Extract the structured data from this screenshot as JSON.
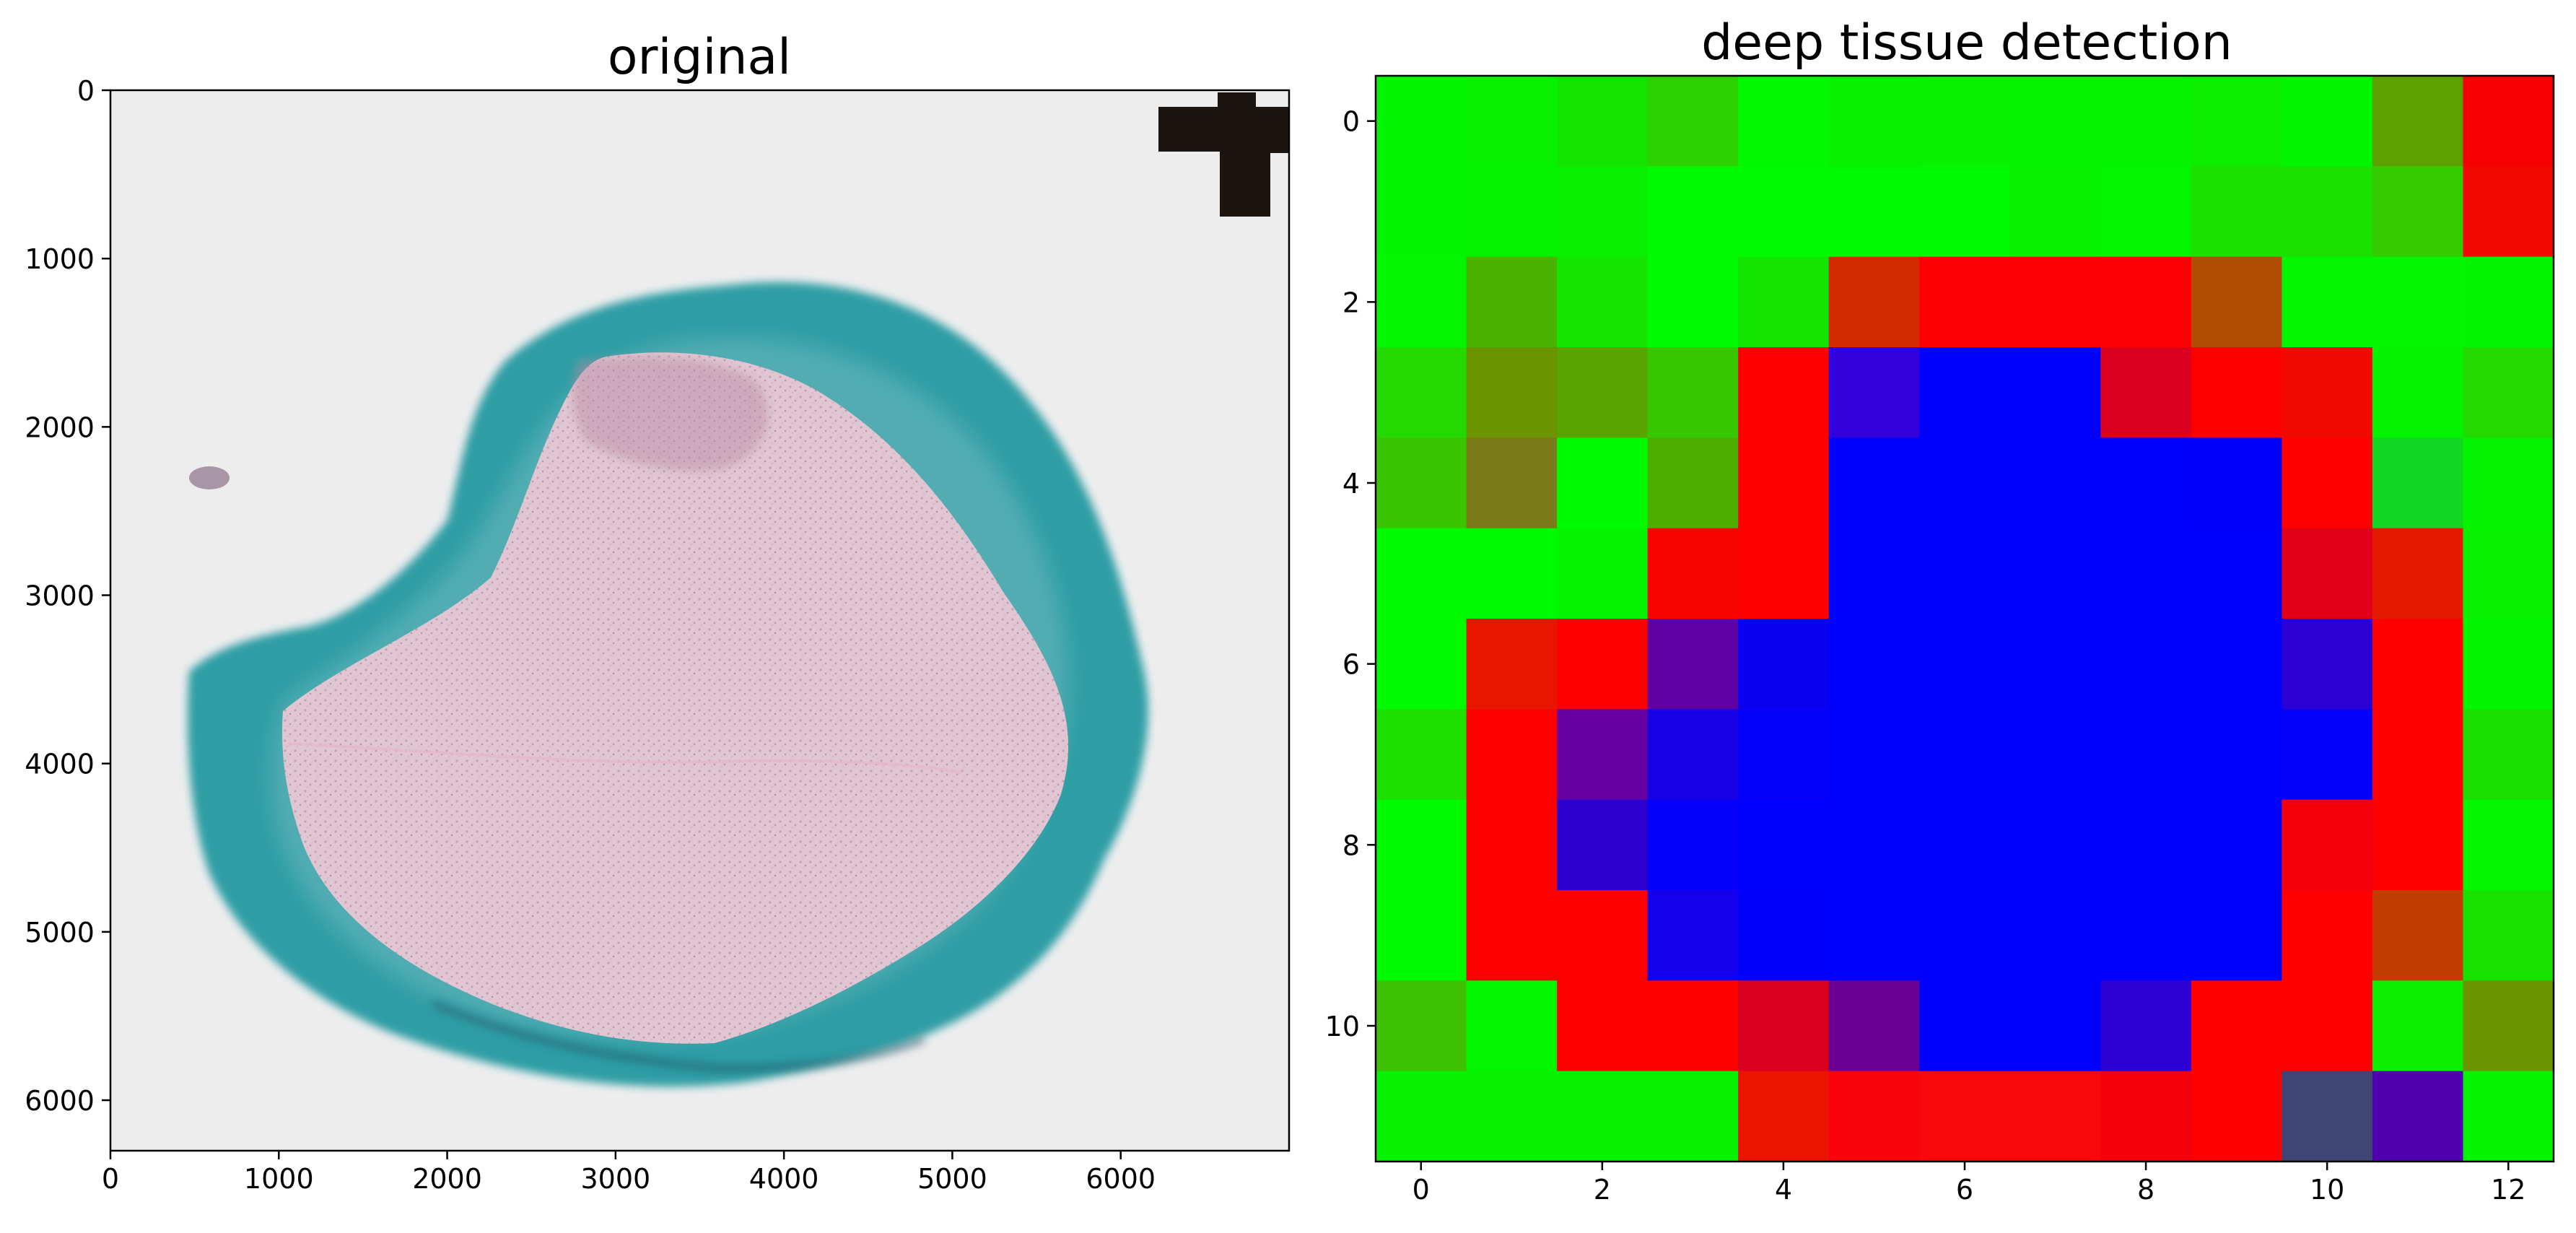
{
  "chart_data": [
    {
      "type": "image",
      "title": "original",
      "xlabel": "",
      "ylabel": "",
      "xlim": [
        0,
        7000
      ],
      "ylim": [
        6300,
        0
      ],
      "xticks": [
        0,
        1000,
        2000,
        3000,
        4000,
        5000,
        6000
      ],
      "yticks": [
        0,
        1000,
        2000,
        3000,
        4000,
        5000,
        6000
      ],
      "xtick_labels": [
        "0",
        "1000",
        "2000",
        "3000",
        "4000",
        "5000",
        "6000"
      ],
      "ytick_labels": [
        "0",
        "1000",
        "2000",
        "3000",
        "4000",
        "5000",
        "6000"
      ],
      "background_color": "#eceded",
      "tissue_ring_color": "#2a9aa0",
      "tissue_core_color": "#dcc2cf",
      "marker_color": "#1a1410"
    },
    {
      "type": "heatmap",
      "title": "deep tissue detection",
      "xlabel": "",
      "ylabel": "",
      "xlim": [
        -0.5,
        12.5
      ],
      "ylim": [
        11.5,
        -0.5
      ],
      "xticks": [
        0,
        2,
        4,
        6,
        8,
        10,
        12
      ],
      "yticks": [
        0,
        2,
        4,
        6,
        8,
        10
      ],
      "xtick_labels": [
        "0",
        "2",
        "4",
        "6",
        "8",
        "10",
        "12"
      ],
      "ytick_labels": [
        "0",
        "2",
        "4",
        "6",
        "8",
        "10"
      ],
      "ncols": 13,
      "nrows": 12,
      "cells": [
        [
          "#02f500",
          "#06f200",
          "#14e500",
          "#2ed100",
          "#00f900",
          "#08f100",
          "#06f200",
          "#04f400",
          "#04f400",
          "#0ced00",
          "#02f500",
          "#5ca100",
          "#f80000"
        ],
        [
          "#02f500",
          "#04f400",
          "#08f000",
          "#00fa00",
          "#00fa00",
          "#00fa00",
          "#00fa00",
          "#06f200",
          "#02f600",
          "#1ce000",
          "#1ce000",
          "#34cc00",
          "#f20800"
        ],
        [
          "#02f600",
          "#4ab200",
          "#14e600",
          "#00fa00",
          "#12e600",
          "#d42a00",
          "#fb0000",
          "#fb0000",
          "#fb0000",
          "#b24c00",
          "#02f600",
          "#02f600",
          "#02f500"
        ],
        [
          "#24d900",
          "#6a9400",
          "#58a400",
          "#36c800",
          "#fe0000",
          "#3200da",
          "#0000fe",
          "#0000fe",
          "#dc0020",
          "#fe0000",
          "#f10a00",
          "#04f400",
          "#24d900"
        ],
        [
          "#38c500",
          "#7a7a18",
          "#00fa00",
          "#4eae00",
          "#fe0000",
          "#0000fe",
          "#0000fe",
          "#0000fe",
          "#0000fe",
          "#0000fa",
          "#fe0000",
          "#12d624",
          "#04f300"
        ],
        [
          "#00fa00",
          "#00fa00",
          "#04f400",
          "#f80400",
          "#fe0000",
          "#0000fe",
          "#0000fe",
          "#0000fe",
          "#0000fe",
          "#0000fe",
          "#e00018",
          "#e41a00",
          "#06f200"
        ],
        [
          "#00fa00",
          "#e81600",
          "#fe0000",
          "#5e00a2",
          "#0a00f2",
          "#0000fe",
          "#0000fe",
          "#0000fe",
          "#0000fe",
          "#0000fe",
          "#2c00d4",
          "#fe0000",
          "#02f500"
        ],
        [
          "#1ee000",
          "#fe0000",
          "#6600a0",
          "#1800e6",
          "#0400fa",
          "#0000fe",
          "#0000fe",
          "#0000fe",
          "#0000fe",
          "#0000fe",
          "#0400fa",
          "#fe0000",
          "#1adf00"
        ],
        [
          "#00fa00",
          "#fe0000",
          "#2e00d0",
          "#0400fa",
          "#0000fe",
          "#0000fe",
          "#0000fe",
          "#0000fe",
          "#0000fe",
          "#0000fe",
          "#f4000c",
          "#fe0000",
          "#02f600"
        ],
        [
          "#00fa00",
          "#fe0000",
          "#fe0000",
          "#1300ec",
          "#0200fc",
          "#0000fe",
          "#0000fe",
          "#0000fe",
          "#0000fe",
          "#0000fe",
          "#fe0000",
          "#c23c00",
          "#18e300"
        ],
        [
          "#3cc000",
          "#02f600",
          "#fe0000",
          "#fe0000",
          "#dc0020",
          "#6a0094",
          "#0000fe",
          "#0000fe",
          "#2c00d2",
          "#fe0000",
          "#fe0000",
          "#0ced00",
          "#6a9400"
        ],
        [
          "#06f200",
          "#06f200",
          "#06f200",
          "#06f200",
          "#ea1400",
          "#f8040a",
          "#f80808",
          "#f80808",
          "#f4000c",
          "#fe0000",
          "#3e4676",
          "#5000ae",
          "#04f300"
        ]
      ]
    }
  ]
}
